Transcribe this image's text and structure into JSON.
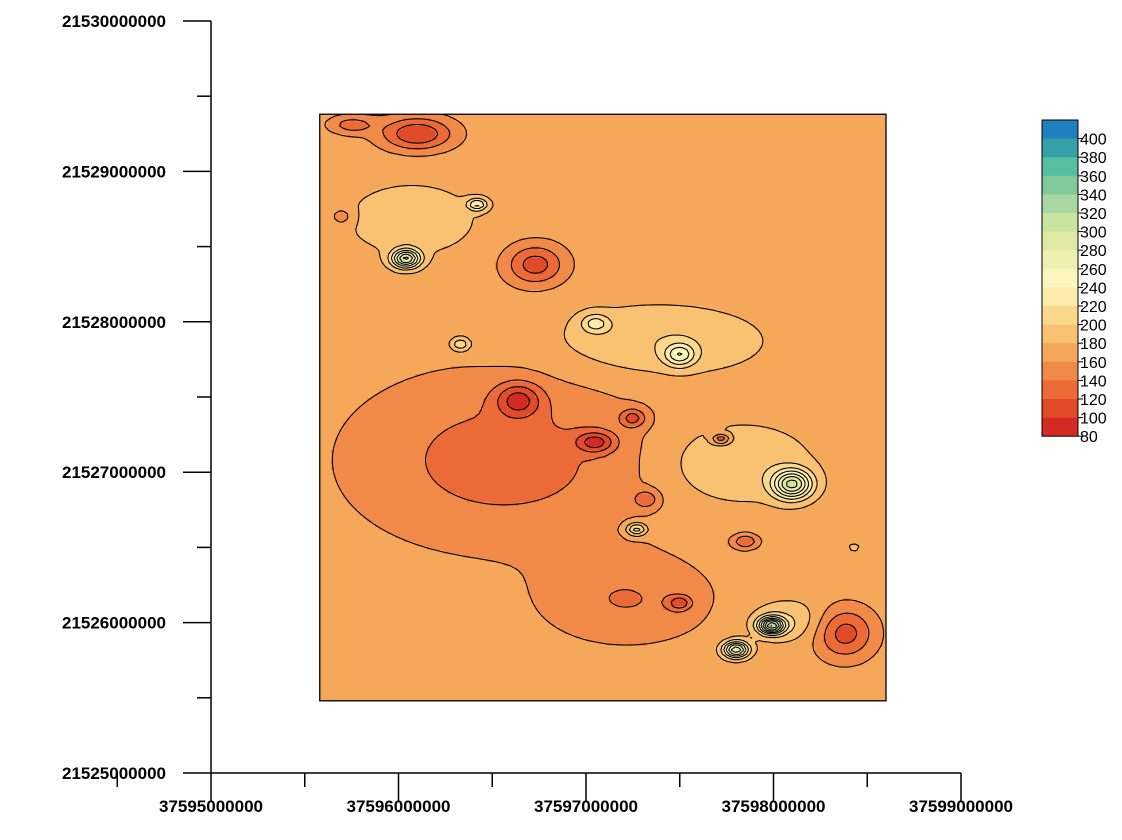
{
  "chart_data": {
    "type": "heatmap",
    "subtype": "filled-contour-map",
    "title": "",
    "xlabel": "",
    "ylabel": "",
    "xlim": [
      37595000000,
      37599000000
    ],
    "ylim": [
      21525000000,
      21530000000
    ],
    "x_ticks": [
      37595000000,
      37596000000,
      37597000000,
      37598000000,
      37599000000
    ],
    "x_tick_labels": [
      "37595000000",
      "37596000000",
      "37597000000",
      "37598000000",
      "37599000000"
    ],
    "y_ticks": [
      21525000000,
      21526000000,
      21527000000,
      21528000000,
      21529000000,
      21530000000
    ],
    "y_tick_labels": [
      "21525000000",
      "21526000000",
      "21527000000",
      "21528000000",
      "21529000000",
      "21530000000"
    ],
    "data_extent": {
      "x": [
        37595580000,
        37598600000
      ],
      "y": [
        21525480000,
        21529380000
      ]
    },
    "background_level_range": [
      160,
      180
    ],
    "grid": false,
    "legend": "right",
    "colorbar": {
      "labels": [
        "400",
        "380",
        "360",
        "340",
        "320",
        "300",
        "280",
        "260",
        "240",
        "220",
        "200",
        "180",
        "160",
        "140",
        "120",
        "100",
        "80"
      ],
      "bands": [
        {
          "from": 400,
          "to": 420,
          "color": "#1f7fbf"
        },
        {
          "from": 380,
          "to": 400,
          "color": "#35a0a8"
        },
        {
          "from": 360,
          "to": 380,
          "color": "#57bfa0"
        },
        {
          "from": 340,
          "to": 360,
          "color": "#82c99a"
        },
        {
          "from": 320,
          "to": 340,
          "color": "#a8d7a0"
        },
        {
          "from": 300,
          "to": 320,
          "color": "#c9e3a0"
        },
        {
          "from": 280,
          "to": 300,
          "color": "#e0e9a2"
        },
        {
          "from": 260,
          "to": 280,
          "color": "#efefb0"
        },
        {
          "from": 240,
          "to": 260,
          "color": "#fbf5bf"
        },
        {
          "from": 220,
          "to": 240,
          "color": "#fcebaa"
        },
        {
          "from": 200,
          "to": 220,
          "color": "#fbd98c"
        },
        {
          "from": 180,
          "to": 200,
          "color": "#f9c272"
        },
        {
          "from": 160,
          "to": 180,
          "color": "#f6a85a"
        },
        {
          "from": 140,
          "to": 160,
          "color": "#f18a48"
        },
        {
          "from": 120,
          "to": 140,
          "color": "#eb6a37"
        },
        {
          "from": 100,
          "to": 120,
          "color": "#e14b2a"
        },
        {
          "from": 80,
          "to": 100,
          "color": "#d42a25"
        }
      ]
    },
    "features": [
      {
        "type": "low",
        "x": 37596100000,
        "y": 21529250000,
        "rx": 280000,
        "ry": 160000,
        "min": 100
      },
      {
        "type": "low",
        "x": 37595750000,
        "y": 21529310000,
        "rx": 180000,
        "ry": 90000,
        "min": 130
      },
      {
        "type": "low",
        "x": 37595700000,
        "y": 21528700000,
        "rx": 90000,
        "ry": 90000,
        "min": 145
      },
      {
        "type": "high",
        "x": 37596070000,
        "y": 21528680000,
        "rx": 460000,
        "ry": 320000,
        "max": 200
      },
      {
        "type": "high",
        "x": 37596040000,
        "y": 21528420000,
        "rx": 110000,
        "ry": 90000,
        "max": 300
      },
      {
        "type": "high",
        "x": 37596420000,
        "y": 21528780000,
        "rx": 80000,
        "ry": 60000,
        "max": 240
      },
      {
        "type": "low",
        "x": 37596730000,
        "y": 21528380000,
        "rx": 230000,
        "ry": 200000,
        "min": 110
      },
      {
        "type": "high",
        "x": 37597370000,
        "y": 21527870000,
        "rx": 820000,
        "ry": 350000,
        "max": 200
      },
      {
        "type": "high",
        "x": 37597500000,
        "y": 21527780000,
        "rx": 120000,
        "ry": 110000,
        "max": 240
      },
      {
        "type": "high",
        "x": 37597050000,
        "y": 21527990000,
        "rx": 110000,
        "ry": 90000,
        "max": 220
      },
      {
        "type": "high",
        "x": 37596330000,
        "y": 21527850000,
        "rx": 80000,
        "ry": 70000,
        "max": 220
      },
      {
        "type": "low",
        "x": 37596560000,
        "y": 21527080000,
        "rx": 1150000,
        "ry": 820000,
        "min": 130
      },
      {
        "type": "low",
        "x": 37596640000,
        "y": 21527480000,
        "rx": 180000,
        "ry": 170000,
        "min": 110
      },
      {
        "type": "low",
        "x": 37597050000,
        "y": 21527200000,
        "rx": 150000,
        "ry": 100000,
        "min": 110
      },
      {
        "type": "low",
        "x": 37597250000,
        "y": 21527360000,
        "rx": 100000,
        "ry": 90000,
        "min": 120
      },
      {
        "type": "high",
        "x": 37597780000,
        "y": 21527060000,
        "rx": 600000,
        "ry": 400000,
        "max": 200
      },
      {
        "type": "high",
        "x": 37598100000,
        "y": 21526920000,
        "rx": 150000,
        "ry": 140000,
        "max": 300
      },
      {
        "type": "low",
        "x": 37597720000,
        "y": 21527220000,
        "rx": 70000,
        "ry": 50000,
        "min": 110
      },
      {
        "type": "high",
        "x": 37597270000,
        "y": 21526620000,
        "rx": 80000,
        "ry": 60000,
        "max": 240
      },
      {
        "type": "low",
        "x": 37597320000,
        "y": 21526820000,
        "rx": 100000,
        "ry": 90000,
        "min": 130
      },
      {
        "type": "low",
        "x": 37597220000,
        "y": 21526150000,
        "rx": 650000,
        "ry": 420000,
        "min": 140
      },
      {
        "type": "low",
        "x": 37597500000,
        "y": 21526130000,
        "rx": 90000,
        "ry": 70000,
        "min": 120
      },
      {
        "type": "low",
        "x": 37597850000,
        "y": 21526540000,
        "rx": 100000,
        "ry": 70000,
        "min": 120
      },
      {
        "type": "high",
        "x": 37598070000,
        "y": 21526010000,
        "rx": 300000,
        "ry": 200000,
        "max": 200
      },
      {
        "type": "high",
        "x": 37597990000,
        "y": 21525980000,
        "rx": 100000,
        "ry": 80000,
        "max": 320
      },
      {
        "type": "high",
        "x": 37597800000,
        "y": 21525820000,
        "rx": 100000,
        "ry": 80000,
        "max": 300
      },
      {
        "type": "low",
        "x": 37598380000,
        "y": 21525930000,
        "rx": 230000,
        "ry": 250000,
        "min": 110
      },
      {
        "type": "high",
        "x": 37598430000,
        "y": 21526500000,
        "rx": 50000,
        "ry": 40000,
        "max": 190
      }
    ]
  }
}
